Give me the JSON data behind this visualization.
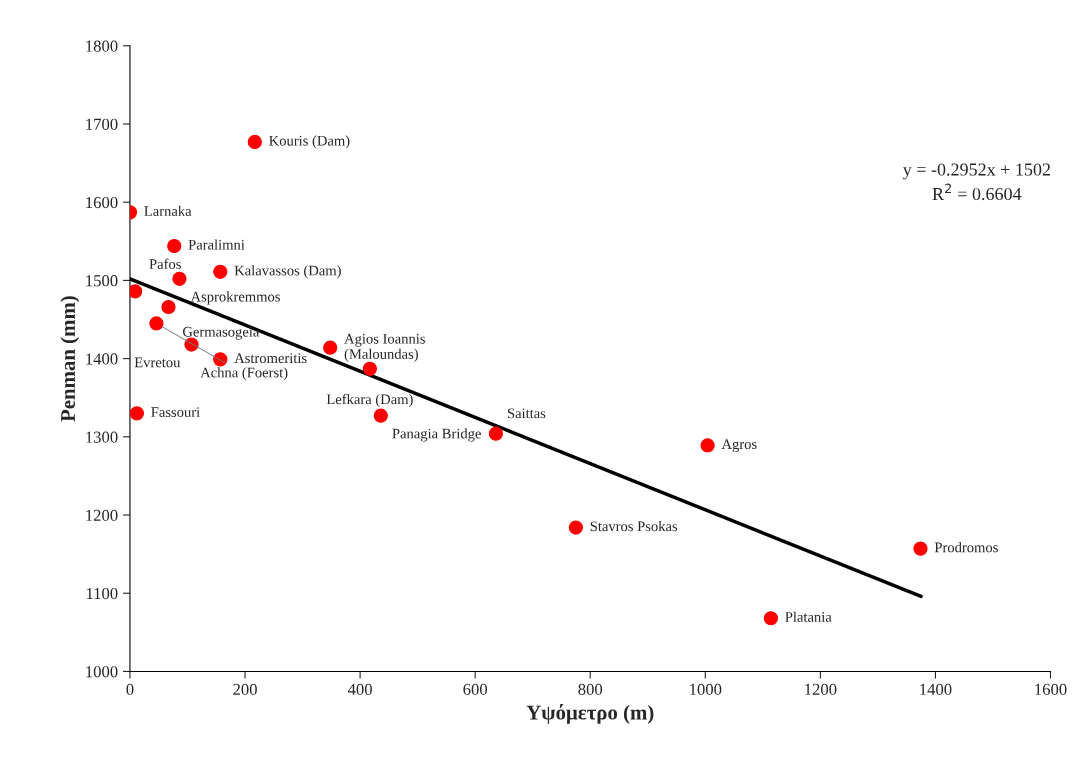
{
  "chart_data": {
    "type": "scatter",
    "xlabel": "Υψόμετρο (m)",
    "ylabel": "Penman (mm)",
    "xlim": [
      0,
      1600
    ],
    "ylim": [
      1000,
      1800
    ],
    "xticks": [
      0,
      200,
      400,
      600,
      800,
      1000,
      1200,
      1400,
      1600
    ],
    "yticks": [
      1000,
      1100,
      1200,
      1300,
      1400,
      1500,
      1600,
      1700,
      1800
    ],
    "grid": false,
    "legend": false,
    "marker": "circle",
    "series": [
      {
        "color": "#ff0000",
        "x": [
          0,
          217,
          77,
          157,
          86,
          9,
          67,
          46,
          107,
          157,
          348,
          417,
          12,
          436,
          636,
          1004,
          775,
          1374,
          1114
        ],
        "values": [
          1587,
          1677,
          1544,
          1511,
          1502,
          1486,
          1466,
          1445,
          1418,
          1399,
          1414,
          1387,
          1330,
          1327,
          1304,
          1289,
          1184,
          1157,
          1068
        ]
      },
      {
        "type": "line",
        "color": "#000000",
        "line_style": "solid",
        "marker": "none",
        "x": [
          0,
          1375
        ],
        "values": [
          1502,
          1096
        ]
      }
    ],
    "annotations": [
      {
        "text": "Larnaka",
        "x": 0,
        "y": 1587
      },
      {
        "text": "Kouris (Dam)",
        "x": 217,
        "y": 1677
      },
      {
        "text": "Paralimni",
        "x": 77,
        "y": 1544
      },
      {
        "text": "Kalavassos (Dam)",
        "x": 157,
        "y": 1511
      },
      {
        "text": "Asprokremmos",
        "x": 86,
        "y": 1502
      },
      {
        "text": "Pafos",
        "x": 9,
        "y": 1486
      },
      {
        "text": "Germasogeia",
        "x": 67,
        "y": 1466
      },
      {
        "text": "Achna (Foerst)",
        "x": 46,
        "y": 1445
      },
      {
        "text": "Evretou",
        "x": 107,
        "y": 1418
      },
      {
        "text": "Astromeritis",
        "x": 157,
        "y": 1399
      },
      {
        "text": "Agios Ioannis\n(Maloundas)",
        "x": 348,
        "y": 1414
      },
      {
        "text": "Lefkara (Dam)",
        "x": 417,
        "y": 1387
      },
      {
        "text": "Fassouri",
        "x": 12,
        "y": 1330
      },
      {
        "text": "Panagia Bridge",
        "x": 436,
        "y": 1327
      },
      {
        "text": "Saittas",
        "x": 636,
        "y": 1304
      },
      {
        "text": "Agros",
        "x": 1004,
        "y": 1289
      },
      {
        "text": "Stavros Psokas",
        "x": 775,
        "y": 1184
      },
      {
        "text": "Prodromos",
        "x": 1374,
        "y": 1157
      },
      {
        "text": "Platania",
        "x": 1114,
        "y": 1068
      },
      "y = -0.2952x + 1502\nR$^{2}$ = 0.6604"
    ]
  }
}
